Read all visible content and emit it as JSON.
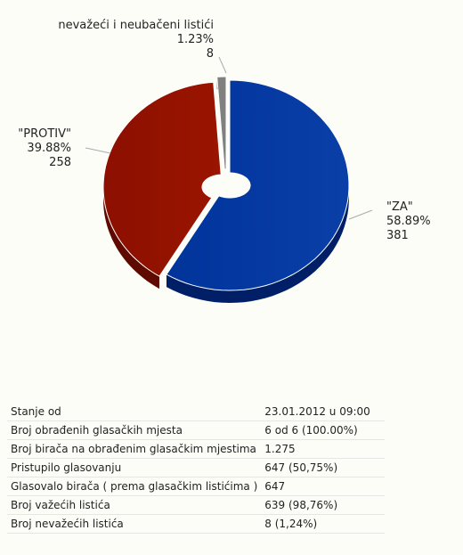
{
  "chart_data": {
    "type": "pie",
    "slices": [
      {
        "label": "\"ZA\"",
        "percent": "58.89%",
        "value": 381,
        "share": 58.89,
        "color": "#00349b"
      },
      {
        "label": "\"PROTIV\"",
        "percent": "39.88%",
        "value": 258,
        "share": 39.88,
        "color": "#941100"
      },
      {
        "label": "nevažeći i neubačeni listići",
        "percent": "1.23%",
        "value": 8,
        "share": 1.23,
        "color": "#808080"
      }
    ]
  },
  "stats": [
    {
      "label": "Stanje od",
      "value": "23.01.2012 u 09:00"
    },
    {
      "label": "Broj obrađenih glasačkih mjesta",
      "value": "6 od 6 (100.00%)"
    },
    {
      "label": "Broj birača na obrađenim glasačkim mjestima",
      "value": "1.275"
    },
    {
      "label": "Pristupilo glasovanju",
      "value": "647 (50,75%)"
    },
    {
      "label": "Glasovalo birača ( prema glasačkim listićima )",
      "value": "647"
    },
    {
      "label": "Broj važećih listića",
      "value": "639 (98,76%)"
    },
    {
      "label": "Broj nevažećih listića",
      "value": "8 (1,24%)"
    }
  ]
}
